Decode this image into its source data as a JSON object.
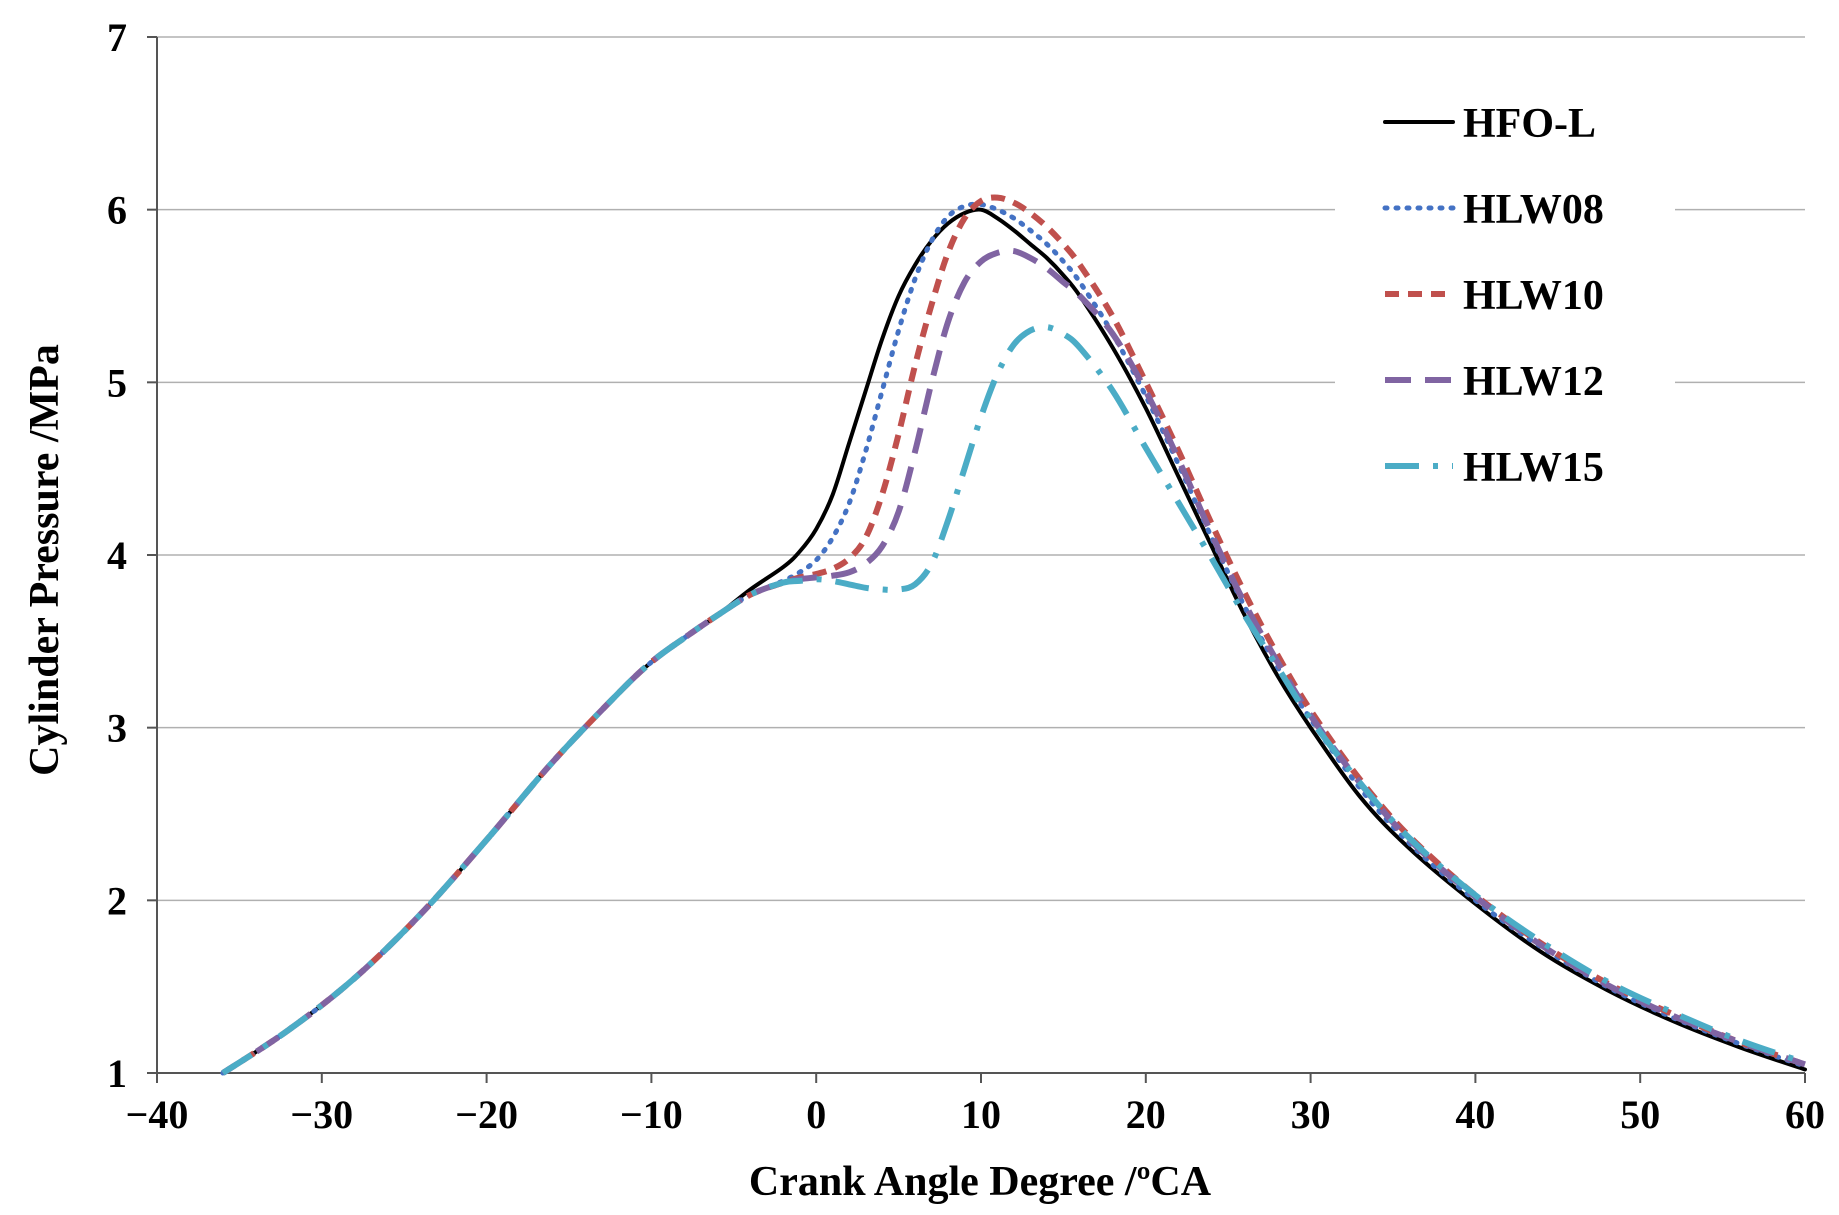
{
  "chart_data": {
    "type": "line",
    "title": "",
    "xlabel": "Crank Angle Degree /ºCA",
    "ylabel": "Cylinder Pressure /MPa",
    "xlim": [
      -40,
      60
    ],
    "ylim": [
      1,
      7
    ],
    "xticks": [
      -40,
      -30,
      -20,
      -10,
      0,
      10,
      20,
      30,
      40,
      50,
      60
    ],
    "xtick_labels": [
      "−40",
      "−30",
      "−20",
      "−10",
      "0",
      "10",
      "20",
      "30",
      "40",
      "50",
      "60"
    ],
    "yticks": [
      1,
      2,
      3,
      4,
      5,
      6,
      7
    ],
    "ytick_labels": [
      "1",
      "2",
      "3",
      "4",
      "5",
      "6",
      "7"
    ],
    "grid": "horizontal",
    "legend_position": "top-right",
    "series": [
      {
        "name": "HFO-L",
        "color": "#000000",
        "dash": "solid",
        "x": [
          -36,
          -32,
          -28,
          -24,
          -20,
          -16,
          -12,
          -10,
          -8,
          -6,
          -4,
          -2,
          -1,
          0,
          1,
          2,
          3,
          4,
          5,
          6,
          7,
          8,
          9,
          10,
          11,
          12,
          13,
          14,
          15,
          16,
          18,
          20,
          22,
          24,
          26,
          28,
          30,
          33,
          36,
          40,
          44,
          48,
          52,
          56,
          60
        ],
        "y": [
          1.0,
          1.25,
          1.55,
          1.92,
          2.35,
          2.8,
          3.2,
          3.38,
          3.52,
          3.65,
          3.8,
          3.93,
          4.02,
          4.15,
          4.35,
          4.65,
          4.95,
          5.25,
          5.5,
          5.68,
          5.82,
          5.92,
          5.98,
          6.0,
          5.95,
          5.88,
          5.8,
          5.72,
          5.62,
          5.5,
          5.2,
          4.85,
          4.45,
          4.05,
          3.65,
          3.3,
          3.0,
          2.6,
          2.3,
          1.98,
          1.7,
          1.48,
          1.3,
          1.15,
          1.02
        ]
      },
      {
        "name": "HLW08",
        "color": "#4472c4",
        "dash": "dotted",
        "x": [
          -36,
          -32,
          -28,
          -24,
          -20,
          -16,
          -12,
          -10,
          -8,
          -6,
          -4,
          -2,
          -1,
          0,
          1,
          2,
          3,
          4,
          5,
          6,
          7,
          8,
          9,
          10,
          11,
          12,
          13,
          14,
          15,
          16,
          18,
          20,
          22,
          24,
          26,
          28,
          30,
          33,
          36,
          40,
          44,
          48,
          52,
          56,
          60
        ],
        "y": [
          1.0,
          1.25,
          1.55,
          1.92,
          2.35,
          2.8,
          3.2,
          3.38,
          3.52,
          3.65,
          3.77,
          3.85,
          3.9,
          3.97,
          4.1,
          4.3,
          4.6,
          4.95,
          5.3,
          5.6,
          5.82,
          5.96,
          6.02,
          6.03,
          6.0,
          5.95,
          5.88,
          5.8,
          5.7,
          5.58,
          5.28,
          4.92,
          4.52,
          4.1,
          3.7,
          3.35,
          3.05,
          2.65,
          2.33,
          2.0,
          1.73,
          1.5,
          1.32,
          1.17,
          1.04
        ]
      },
      {
        "name": "HLW10",
        "color": "#c0504d",
        "dash": "dashed",
        "x": [
          -36,
          -32,
          -28,
          -24,
          -20,
          -16,
          -12,
          -10,
          -8,
          -6,
          -4,
          -2,
          -1,
          0,
          1,
          2,
          3,
          4,
          5,
          6,
          7,
          8,
          9,
          10,
          11,
          12,
          13,
          14,
          15,
          16,
          18,
          20,
          22,
          24,
          26,
          28,
          30,
          33,
          36,
          40,
          44,
          48,
          52,
          56,
          60
        ],
        "y": [
          1.0,
          1.25,
          1.55,
          1.92,
          2.35,
          2.8,
          3.2,
          3.38,
          3.52,
          3.65,
          3.77,
          3.84,
          3.87,
          3.89,
          3.92,
          3.98,
          4.1,
          4.35,
          4.7,
          5.1,
          5.45,
          5.75,
          5.95,
          6.05,
          6.07,
          6.04,
          5.98,
          5.9,
          5.8,
          5.68,
          5.38,
          5.0,
          4.6,
          4.18,
          3.78,
          3.42,
          3.1,
          2.7,
          2.37,
          2.03,
          1.75,
          1.52,
          1.34,
          1.18,
          1.05
        ]
      },
      {
        "name": "HLW12",
        "color": "#8064a2",
        "dash": "long-dash",
        "x": [
          -36,
          -32,
          -28,
          -24,
          -20,
          -16,
          -12,
          -10,
          -8,
          -6,
          -4,
          -2,
          -1,
          0,
          1,
          2,
          3,
          4,
          5,
          6,
          7,
          8,
          9,
          10,
          11,
          12,
          13,
          14,
          15,
          16,
          18,
          20,
          22,
          24,
          26,
          28,
          30,
          33,
          36,
          40,
          44,
          48,
          52,
          56,
          60
        ],
        "y": [
          1.0,
          1.25,
          1.55,
          1.92,
          2.35,
          2.8,
          3.2,
          3.38,
          3.52,
          3.65,
          3.77,
          3.84,
          3.86,
          3.87,
          3.88,
          3.9,
          3.95,
          4.05,
          4.25,
          4.6,
          5.0,
          5.35,
          5.58,
          5.7,
          5.75,
          5.76,
          5.72,
          5.66,
          5.58,
          5.5,
          5.28,
          4.95,
          4.55,
          4.12,
          3.72,
          3.38,
          3.07,
          2.68,
          2.35,
          2.02,
          1.74,
          1.51,
          1.33,
          1.18,
          1.05
        ]
      },
      {
        "name": "HLW15",
        "color": "#4bacc6",
        "dash": "dash-dot",
        "x": [
          -36,
          -32,
          -28,
          -24,
          -20,
          -16,
          -12,
          -10,
          -8,
          -6,
          -4,
          -2,
          -1,
          0,
          1,
          2,
          3,
          4,
          5,
          6,
          7,
          8,
          9,
          10,
          11,
          12,
          13,
          14,
          15,
          16,
          18,
          20,
          22,
          24,
          26,
          28,
          30,
          33,
          36,
          40,
          44,
          48,
          52,
          56,
          60
        ],
        "y": [
          1.0,
          1.25,
          1.55,
          1.92,
          2.35,
          2.8,
          3.2,
          3.38,
          3.52,
          3.65,
          3.77,
          3.84,
          3.85,
          3.86,
          3.85,
          3.83,
          3.81,
          3.8,
          3.8,
          3.83,
          3.95,
          4.2,
          4.5,
          4.8,
          5.05,
          5.22,
          5.3,
          5.32,
          5.28,
          5.2,
          4.95,
          4.62,
          4.3,
          3.98,
          3.65,
          3.35,
          3.05,
          2.68,
          2.36,
          2.03,
          1.76,
          1.53,
          1.35,
          1.19,
          1.06
        ]
      }
    ]
  }
}
